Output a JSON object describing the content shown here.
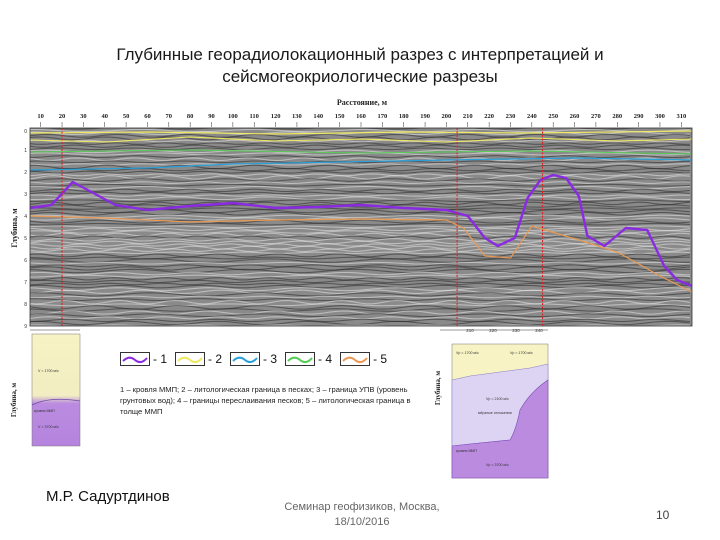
{
  "slide": {
    "title_line1": "Глубинные георадиолокационный разрез с интерпретацией и",
    "title_line2": "сейсмогеокриологические разрезы",
    "author": "М.Р. Садуртдинов",
    "seminar_line1": "Семинар геофизиков, Москва,",
    "seminar_line2": "18/10/2016",
    "page_number": "10"
  },
  "radargram": {
    "x_axis_title": "Расстояние, м",
    "y_axis_title": "Глубина, м",
    "x_ticks": [
      "10",
      "20",
      "30",
      "40",
      "50",
      "60",
      "70",
      "80",
      "90",
      "100",
      "110",
      "120",
      "130",
      "140",
      "150",
      "160",
      "170",
      "180",
      "190",
      "200",
      "210",
      "220",
      "230",
      "240",
      "250",
      "260",
      "270",
      "280",
      "290",
      "300",
      "310"
    ],
    "y_ticks": [
      "0",
      "1",
      "2",
      "3",
      "4",
      "5",
      "6",
      "7",
      "8",
      "9"
    ],
    "marker_positions_m": [
      20,
      205,
      245
    ],
    "colors": {
      "roof_mmp": "#8a2be2",
      "litho_sand": "#f0e860",
      "groundwater": "#2a9fd8",
      "interbedding": "#55cc55",
      "litho_mmp": "#e89a55",
      "marker": "#dd2222"
    }
  },
  "legend": {
    "items": [
      {
        "label": "- 1",
        "color": "#8a2be2"
      },
      {
        "label": "- 2",
        "color": "#f0e860"
      },
      {
        "label": "- 3",
        "color": "#2a9fd8"
      },
      {
        "label": "- 4",
        "color": "#55cc55"
      },
      {
        "label": "- 5",
        "color": "#e89a55"
      }
    ],
    "caption": "1 – кровля ММП; 2 – литологическая граница в песках; 3 – граница УПВ (уровень грунтовых вод); 4 – границы переслаивания песков; 5 – литологическая граница в толще ММП"
  },
  "seismic_left": {
    "y_axis_title": "Глубина, м",
    "labels": [
      "V = 1700 м/с",
      "кровля ММП",
      "V = 3700 м/с"
    ],
    "colors": {
      "top": "#f7f3c4",
      "bottom": "#bb8be0"
    }
  },
  "seismic_right": {
    "y_axis_title": "Глубина, м",
    "x_ticks": [
      "210",
      "220",
      "230",
      "240"
    ],
    "labels": [
      "Vp = 1700 м/с",
      "Vp = 1700 м/с",
      "Vp = 2100 м/с",
      "мёрзлые отложения",
      "кровля ММП",
      "Vp = 3700 м/с"
    ],
    "colors": {
      "top": "#f7f3c4",
      "mid": "#dcd4f2",
      "bottom": "#bb8be0"
    }
  }
}
